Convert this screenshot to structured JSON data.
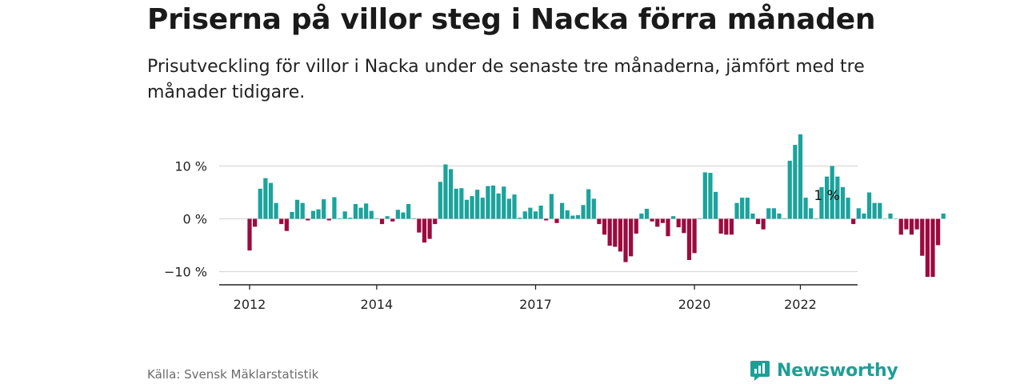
{
  "header": {
    "title": "Priserna på villor steg i Nacka förra månaden",
    "subtitle": "Prisutveckling för villor i Nacka under de senaste tre månaderna, jämfört med tre månader tidigare."
  },
  "footer": {
    "source": "Källa: Svensk Mäklarstatistik",
    "brand": "Newsworthy"
  },
  "colors": {
    "positive": "#1ba39c",
    "negative": "#9b0b3f",
    "brand": "#1f9e96",
    "grid": "#d9d9d9",
    "axis": "#222222"
  },
  "chart_data": {
    "type": "bar",
    "title": "Priserna på villor steg i Nacka förra månaden",
    "xlabel": "",
    "ylabel": "",
    "ylim": [
      -12.5,
      17
    ],
    "y_ticks": [
      10,
      0,
      -10
    ],
    "y_tick_labels": [
      "10 %",
      "0 %",
      "−10 %"
    ],
    "x_ticks": [
      {
        "label": "2012",
        "month": 0
      },
      {
        "label": "2014",
        "month": 24
      },
      {
        "label": "2017",
        "month": 54
      },
      {
        "label": "2020",
        "month": 84
      },
      {
        "label": "2022",
        "month": 104
      }
    ],
    "start": "2012-01",
    "end": "2023-02",
    "grid": true,
    "annotation": {
      "text": "1 %",
      "month": 109,
      "value": 1
    },
    "values": [
      -6,
      -1.5,
      5.7,
      7.7,
      6.8,
      3,
      -1,
      -2.3,
      1.3,
      3.6,
      3,
      -0.3,
      1.5,
      1.8,
      3.7,
      -0.3,
      4.1,
      0.1,
      1.4,
      0.2,
      2.8,
      2.1,
      2.9,
      1.5,
      0.1,
      -1,
      0.5,
      -0.5,
      1.7,
      1.2,
      2.8,
      0.1,
      -2.6,
      -4.5,
      -3.8,
      -1,
      7,
      10.3,
      9.4,
      5.7,
      5.8,
      3.6,
      4.3,
      5.5,
      4,
      6.2,
      6.3,
      4.8,
      6.1,
      3.8,
      4.6,
      0.2,
      1.4,
      2.1,
      1.4,
      2.5,
      -0.3,
      4.7,
      -0.8,
      3,
      1.6,
      0.6,
      0.7,
      2.6,
      5.6,
      3.8,
      -1,
      -3,
      -5.1,
      -5.3,
      -6.2,
      -8.2,
      -7.1,
      -2.8,
      1,
      1.9,
      -0.5,
      -1.5,
      -0.8,
      -3.3,
      0.5,
      -1.6,
      -2.7,
      -7.8,
      -6.5,
      0.1,
      8.8,
      8.7,
      5.1,
      -2.8,
      -3,
      -3,
      3,
      4,
      4,
      1,
      -1,
      -2,
      2,
      2,
      1,
      0.1,
      11,
      14,
      16,
      4,
      2,
      0,
      6,
      8,
      10,
      8,
      6,
      4,
      -1,
      2,
      1,
      5,
      3,
      3,
      0,
      1,
      0,
      -3,
      -2,
      -3,
      -2,
      -7,
      -11,
      -11,
      -5,
      1
    ],
    "values_start_month": 0
  }
}
